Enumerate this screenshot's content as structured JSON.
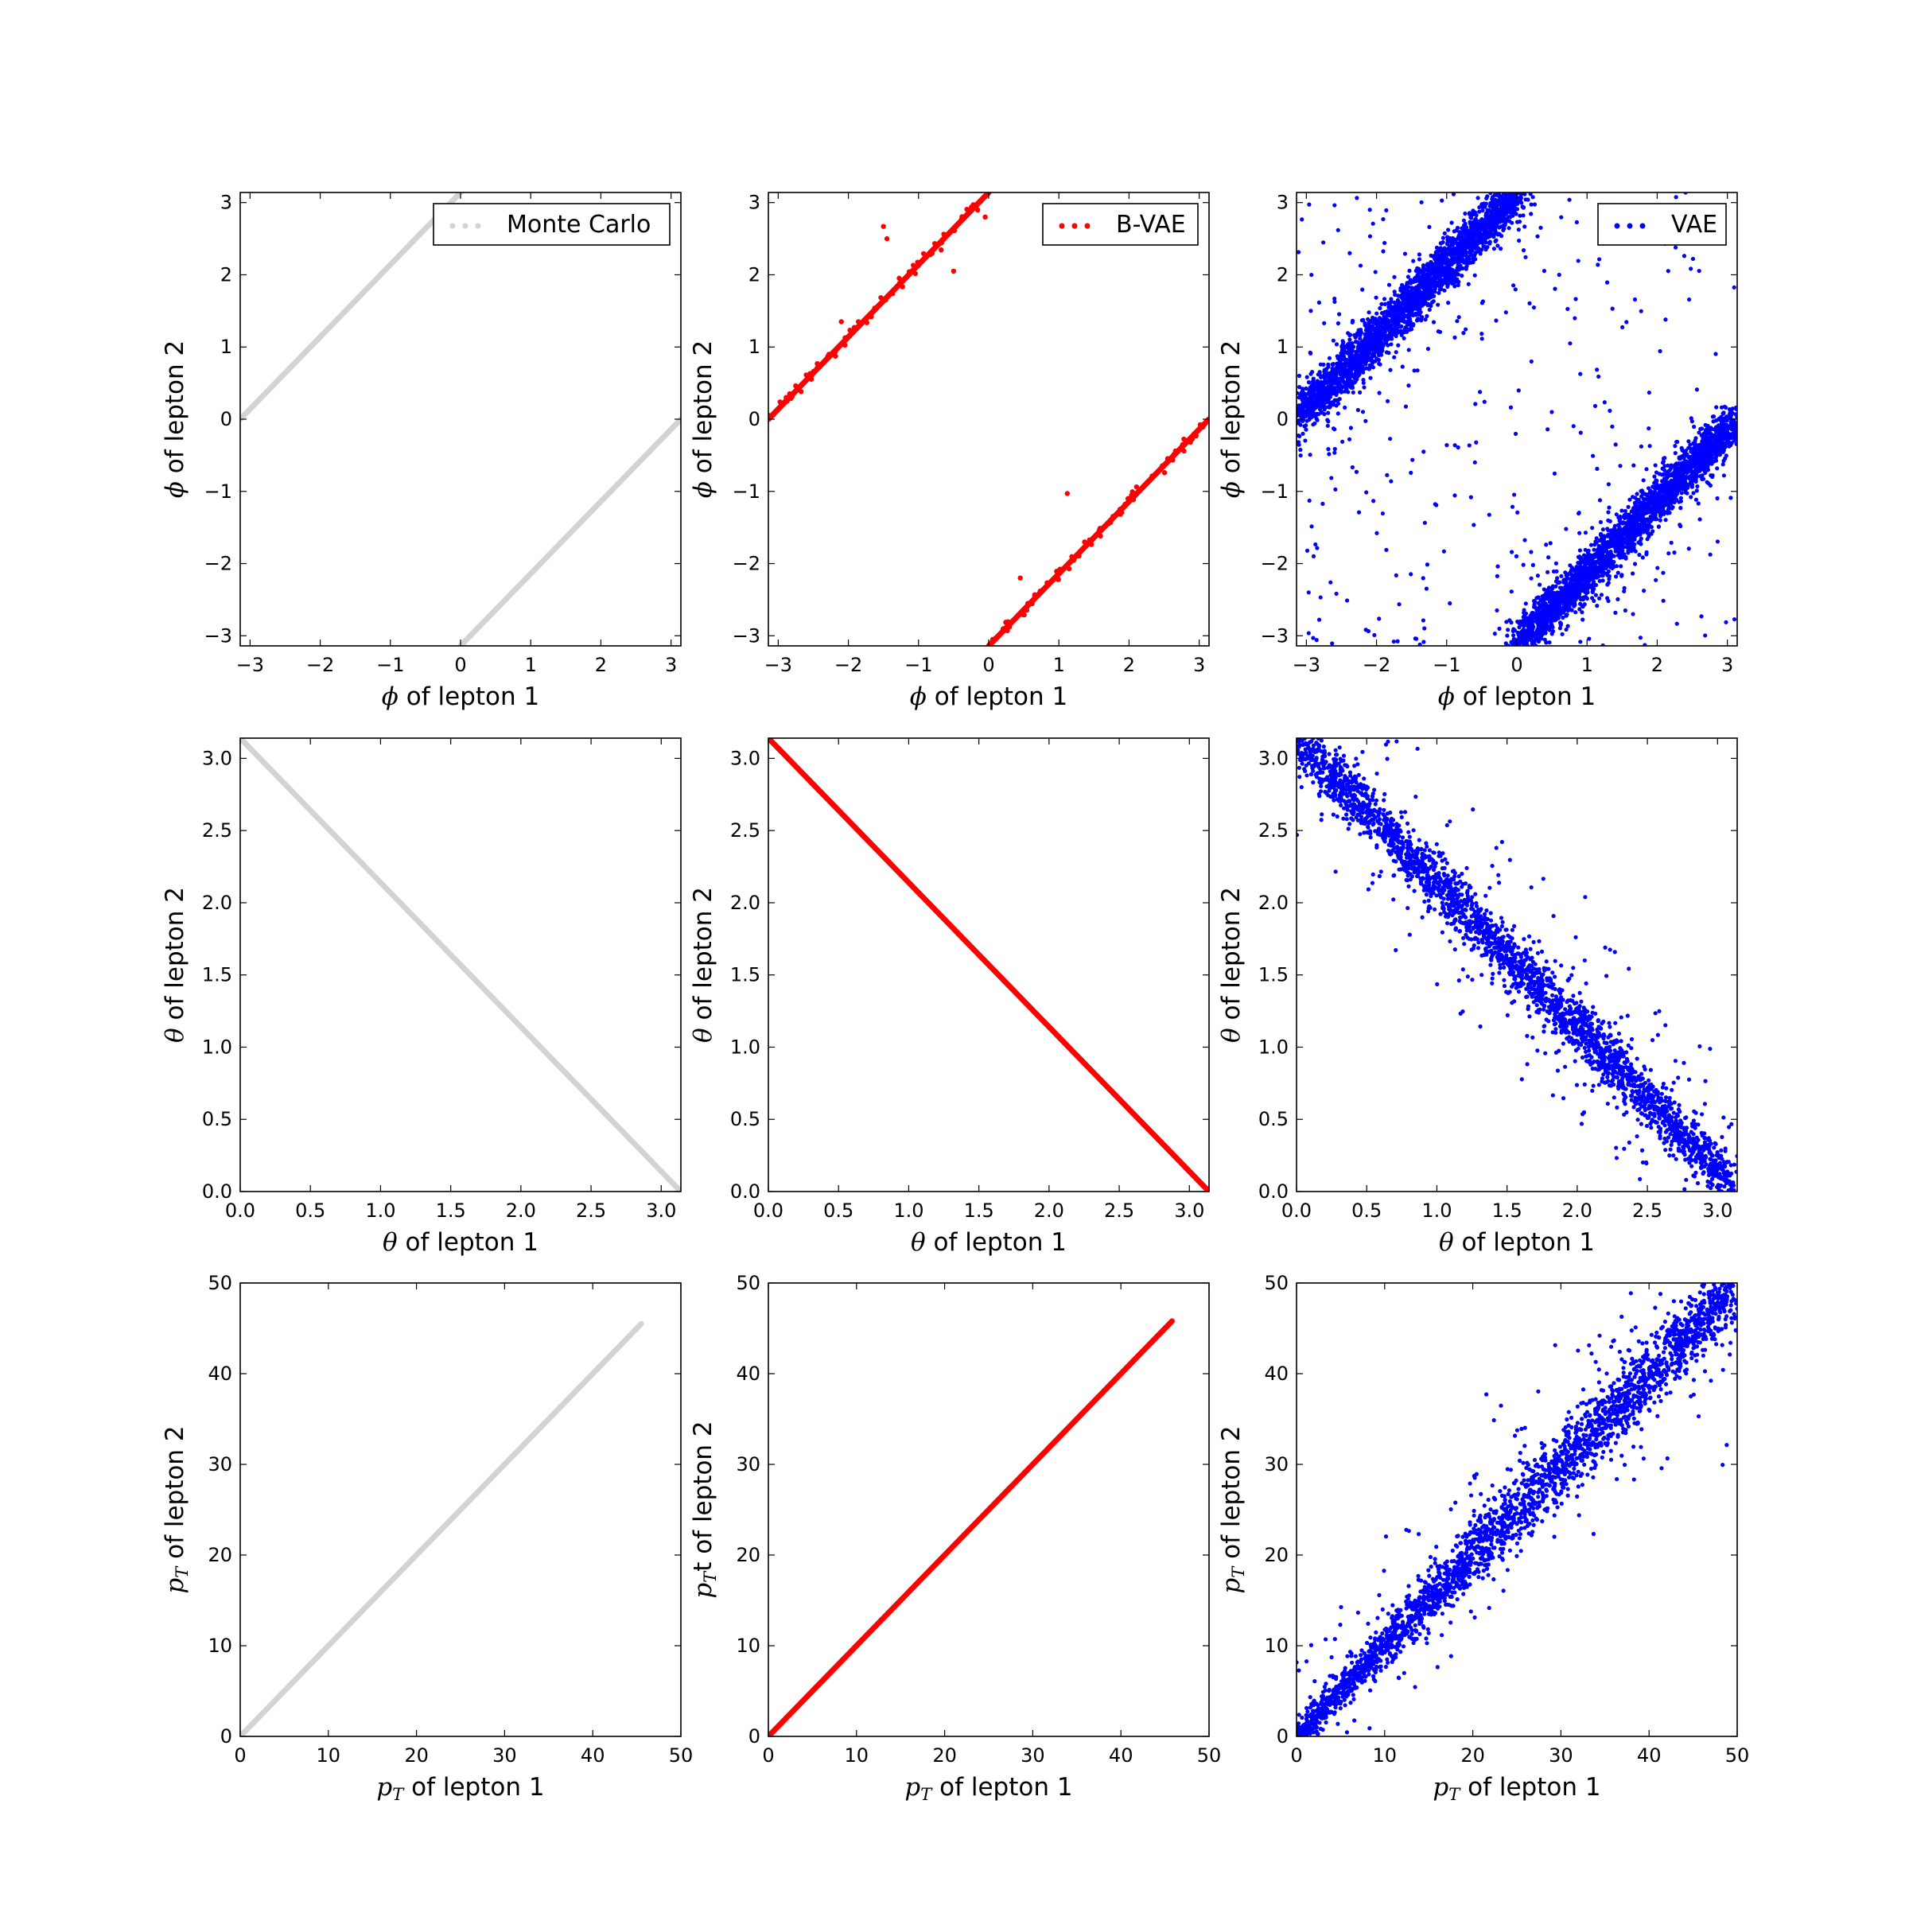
{
  "chart_data": [
    {
      "type": "scatter",
      "row": "phi",
      "model": "Monte Carlo",
      "legend": "Monte Carlo",
      "legend_position": "top-right",
      "color": "#d3d3d3",
      "xlabel_symbol": "ϕ",
      "xlabel": " of lepton 1",
      "ylabel_symbol": "ϕ",
      "ylabel": " of lepton 2",
      "xlim": [
        -3.14,
        3.14
      ],
      "ylim": [
        -3.14,
        3.14
      ],
      "xticks": [
        -3,
        -2,
        -1,
        0,
        1,
        2,
        3
      ],
      "xtick_labels": [
        "−3",
        "−2",
        "−1",
        "0",
        "1",
        "2",
        "3"
      ],
      "yticks": [
        -3,
        -2,
        -1,
        0,
        1,
        2,
        3
      ],
      "ytick_labels": [
        "−3",
        "−2",
        "−1",
        "0",
        "1",
        "2",
        "3"
      ],
      "lines": [
        {
          "x": [
            -3.14,
            0
          ],
          "y": [
            0,
            3.14
          ]
        },
        {
          "x": [
            0,
            3.14
          ],
          "y": [
            -3.14,
            0
          ]
        }
      ]
    },
    {
      "type": "scatter",
      "row": "phi",
      "model": "B-VAE",
      "legend": "B-VAE",
      "legend_position": "top-right",
      "color": "#ff0000",
      "xlabel_symbol": "ϕ",
      "xlabel": " of lepton 1",
      "ylabel_symbol": "ϕ",
      "ylabel": " of lepton 2",
      "xlim": [
        -3.14,
        3.14
      ],
      "ylim": [
        -3.14,
        3.14
      ],
      "xticks": [
        -3,
        -2,
        -1,
        0,
        1,
        2,
        3
      ],
      "xtick_labels": [
        "−3",
        "−2",
        "−1",
        "0",
        "1",
        "2",
        "3"
      ],
      "yticks": [
        -3,
        -2,
        -1,
        0,
        1,
        2,
        3
      ],
      "ytick_labels": [
        "−3",
        "−2",
        "−1",
        "0",
        "1",
        "2",
        "3"
      ],
      "lines": [
        {
          "x": [
            -3.14,
            0
          ],
          "y": [
            0,
            3.14
          ]
        },
        {
          "x": [
            0,
            3.14
          ],
          "y": [
            -3.14,
            0
          ]
        }
      ],
      "outliers": [
        [
          -1.5,
          2.67
        ],
        [
          -1.45,
          2.5
        ],
        [
          -0.5,
          2.05
        ],
        [
          -0.05,
          2.8
        ],
        [
          1.12,
          -1.03
        ],
        [
          -2.1,
          1.35
        ],
        [
          0.45,
          -2.2
        ]
      ]
    },
    {
      "type": "scatter",
      "row": "phi",
      "model": "VAE",
      "legend": "VAE",
      "legend_position": "top-right",
      "color": "#0000ff",
      "xlabel_symbol": "ϕ",
      "xlabel": " of lepton 1",
      "ylabel_symbol": "ϕ",
      "ylabel": " of lepton 2",
      "xlim": [
        -3.14,
        3.14
      ],
      "ylim": [
        -3.14,
        3.14
      ],
      "xticks": [
        -3,
        -2,
        -1,
        0,
        1,
        2,
        3
      ],
      "xtick_labels": [
        "−3",
        "−2",
        "−1",
        "0",
        "1",
        "2",
        "3"
      ],
      "yticks": [
        -3,
        -2,
        -1,
        0,
        1,
        2,
        3
      ],
      "ytick_labels": [
        "−3",
        "−2",
        "−1",
        "0",
        "1",
        "2",
        "3"
      ],
      "lines": [
        {
          "x": [
            -3.14,
            0
          ],
          "y": [
            0,
            3.14
          ]
        },
        {
          "x": [
            0,
            3.14
          ],
          "y": [
            -3.14,
            0
          ]
        }
      ],
      "spread": 0.35
    },
    {
      "type": "scatter",
      "row": "theta",
      "model": "Monte Carlo",
      "color": "#d3d3d3",
      "xlabel_symbol": "θ",
      "xlabel": " of lepton 1",
      "ylabel_symbol": "θ",
      "ylabel": " of lepton 2",
      "xlim": [
        0,
        3.14
      ],
      "ylim": [
        0,
        3.14
      ],
      "xticks": [
        0,
        0.5,
        1,
        1.5,
        2,
        2.5,
        3
      ],
      "xtick_labels": [
        "0.0",
        "0.5",
        "1.0",
        "1.5",
        "2.0",
        "2.5",
        "3.0"
      ],
      "yticks": [
        0,
        0.5,
        1,
        1.5,
        2,
        2.5,
        3
      ],
      "ytick_labels": [
        "0.0",
        "0.5",
        "1.0",
        "1.5",
        "2.0",
        "2.5",
        "3.0"
      ],
      "lines": [
        {
          "x": [
            0,
            3.14
          ],
          "y": [
            3.14,
            0
          ]
        }
      ]
    },
    {
      "type": "scatter",
      "row": "theta",
      "model": "B-VAE",
      "color": "#ff0000",
      "xlabel_symbol": "θ",
      "xlabel": " of lepton 1",
      "ylabel_symbol": "θ",
      "ylabel": " of lepton 2",
      "xlim": [
        0,
        3.14
      ],
      "ylim": [
        0,
        3.14
      ],
      "xticks": [
        0,
        0.5,
        1,
        1.5,
        2,
        2.5,
        3
      ],
      "xtick_labels": [
        "0.0",
        "0.5",
        "1.0",
        "1.5",
        "2.0",
        "2.5",
        "3.0"
      ],
      "yticks": [
        0,
        0.5,
        1,
        1.5,
        2,
        2.5,
        3
      ],
      "ytick_labels": [
        "0.0",
        "0.5",
        "1.0",
        "1.5",
        "2.0",
        "2.5",
        "3.0"
      ],
      "lines": [
        {
          "x": [
            0,
            3.14
          ],
          "y": [
            3.14,
            0
          ]
        }
      ]
    },
    {
      "type": "scatter",
      "row": "theta",
      "model": "VAE",
      "color": "#0000ff",
      "xlabel_symbol": "θ",
      "xlabel": " of lepton 1",
      "ylabel_symbol": "θ",
      "ylabel": " of lepton 2",
      "xlim": [
        0,
        3.14
      ],
      "ylim": [
        0,
        3.14
      ],
      "xticks": [
        0,
        0.5,
        1,
        1.5,
        2,
        2.5,
        3
      ],
      "xtick_labels": [
        "0.0",
        "0.5",
        "1.0",
        "1.5",
        "2.0",
        "2.5",
        "3.0"
      ],
      "yticks": [
        0,
        0.5,
        1,
        1.5,
        2,
        2.5,
        3
      ],
      "ytick_labels": [
        "0.0",
        "0.5",
        "1.0",
        "1.5",
        "2.0",
        "2.5",
        "3.0"
      ],
      "lines": [
        {
          "x": [
            0,
            3.14
          ],
          "y": [
            3.14,
            0
          ]
        }
      ],
      "spread": 0.2
    },
    {
      "type": "scatter",
      "row": "pt",
      "model": "Monte Carlo",
      "color": "#d3d3d3",
      "xlabel_symbol": "p",
      "xlabel_sub": "T",
      "xlabel": " of lepton 1",
      "ylabel_symbol": "p",
      "ylabel_sub": "T",
      "ylabel": " of lepton 2",
      "xlim": [
        0,
        50
      ],
      "ylim": [
        0,
        50
      ],
      "xticks": [
        0,
        10,
        20,
        30,
        40,
        50
      ],
      "xtick_labels": [
        "0",
        "10",
        "20",
        "30",
        "40",
        "50"
      ],
      "yticks": [
        0,
        10,
        20,
        30,
        40,
        50
      ],
      "ytick_labels": [
        "0",
        "10",
        "20",
        "30",
        "40",
        "50"
      ],
      "lines": [
        {
          "x": [
            0,
            45.5
          ],
          "y": [
            0,
            45.5
          ]
        }
      ]
    },
    {
      "type": "scatter",
      "row": "pt",
      "model": "B-VAE",
      "color": "#ff0000",
      "xlabel_symbol": "p",
      "xlabel_sub": "T",
      "xlabel": " of lepton 1",
      "ylabel_symbol": "p",
      "ylabel_sub": "T",
      "ylabel": "t of lepton 2",
      "xlim": [
        0,
        50
      ],
      "ylim": [
        0,
        50
      ],
      "xticks": [
        0,
        10,
        20,
        30,
        40,
        50
      ],
      "xtick_labels": [
        "0",
        "10",
        "20",
        "30",
        "40",
        "50"
      ],
      "yticks": [
        0,
        10,
        20,
        30,
        40,
        50
      ],
      "ytick_labels": [
        "0",
        "10",
        "20",
        "30",
        "40",
        "50"
      ],
      "lines": [
        {
          "x": [
            0,
            45.8
          ],
          "y": [
            0,
            45.8
          ]
        }
      ]
    },
    {
      "type": "scatter",
      "row": "pt",
      "model": "VAE",
      "color": "#0000ff",
      "xlabel_symbol": "p",
      "xlabel_sub": "T",
      "xlabel": " of lepton 1",
      "ylabel_symbol": "p",
      "ylabel_sub": "T",
      "ylabel": " of lepton 2",
      "xlim": [
        0,
        50
      ],
      "ylim": [
        0,
        50
      ],
      "xticks": [
        0,
        10,
        20,
        30,
        40,
        50
      ],
      "xtick_labels": [
        "0",
        "10",
        "20",
        "30",
        "40",
        "50"
      ],
      "yticks": [
        0,
        10,
        20,
        30,
        40,
        50
      ],
      "ytick_labels": [
        "0",
        "10",
        "20",
        "30",
        "40",
        "50"
      ],
      "lines": [
        {
          "x": [
            0,
            50
          ],
          "y": [
            0,
            50
          ]
        }
      ],
      "spread": 3.0
    }
  ]
}
